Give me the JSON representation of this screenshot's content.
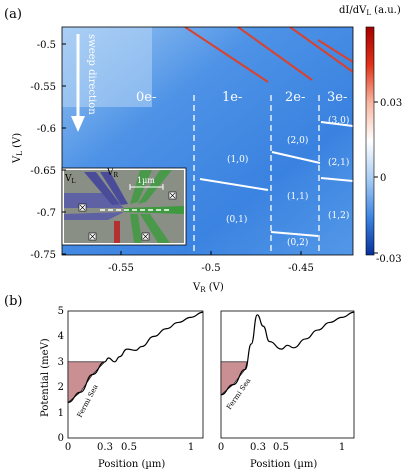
{
  "panel_a": {
    "label": "(a)",
    "colorbar": {
      "title": "dI/dVₗ (a.u.)",
      "title_main": "dI/dV",
      "title_sub": "L",
      "title_unit": " (a.u.)",
      "ticks": [
        "0.03",
        "0",
        "-0.03"
      ],
      "colors": [
        "#a50000",
        "#e0331a",
        "#f7b7a3",
        "#ffffff",
        "#a9cdf3",
        "#3d85e3",
        "#08309c"
      ]
    },
    "ylabel_main": "V",
    "ylabel_sub": "L",
    "ylabel_unit": " (V)",
    "xlabel_main": "V",
    "xlabel_sub": "R",
    "xlabel_unit": " (V)",
    "yticks": [
      "-0.5",
      "-0.55",
      "-0.6",
      "-0.65",
      "-0.7",
      "-0.75"
    ],
    "xticks": [
      "-0.55",
      "-0.5",
      "-0.45"
    ],
    "sweep_text": "sweep direction",
    "regions": [
      "0e-",
      "1e-",
      "2e-",
      "3e-"
    ],
    "states": [
      "(1,0)",
      "(0,1)",
      "(2,0)",
      "(1,1)",
      "(0,2)",
      "(3,0)",
      "(2,1)",
      "(1,2)"
    ],
    "inset": {
      "vl": "V",
      "vl_sub": "L",
      "vr": "V",
      "vr_sub": "R",
      "scale": "1µm"
    }
  },
  "panel_b": {
    "label": "(b)",
    "ylabel": "Potential (meV)",
    "xlabel": "Position (µm)",
    "yticks": [
      "0",
      "1",
      "2",
      "3",
      "4",
      "5"
    ],
    "xticks": [
      "0",
      "0.3",
      "0.5",
      "1"
    ],
    "fermi_label": "Fermi Sea"
  },
  "chart_data": [
    {
      "type": "heatmap",
      "xlabel": "V_R (V)",
      "ylabel": "V_L (V)",
      "xlim": [
        -0.595,
        -0.435
      ],
      "ylim": [
        -0.75,
        -0.48
      ],
      "colorbar_range": [
        -0.03,
        0.03
      ],
      "charge_transitions_vr": [
        -0.523,
        -0.475,
        -0.45
      ]
    },
    {
      "type": "line",
      "xlabel": "Position (µm)",
      "ylabel": "Potential (meV)",
      "xlim": [
        0,
        1.1
      ],
      "ylim": [
        0,
        5
      ],
      "fermi_level": 3.0,
      "x": [
        0,
        0.1,
        0.2,
        0.3,
        0.33,
        0.38,
        0.42,
        0.48,
        0.55,
        0.6,
        0.7,
        0.8,
        0.9,
        1.0,
        1.1
      ],
      "y": [
        1.4,
        1.8,
        2.5,
        3.0,
        3.15,
        3.0,
        3.2,
        3.5,
        3.45,
        3.6,
        4.0,
        4.3,
        4.55,
        4.75,
        4.95
      ]
    },
    {
      "type": "line",
      "xlabel": "Position (µm)",
      "ylabel": "Potential (meV)",
      "xlim": [
        0,
        1.1
      ],
      "ylim": [
        0,
        5
      ],
      "fermi_level": 3.0,
      "x": [
        0,
        0.1,
        0.2,
        0.25,
        0.3,
        0.35,
        0.4,
        0.5,
        0.55,
        0.6,
        0.7,
        0.8,
        0.9,
        1.0,
        1.1
      ],
      "y": [
        1.7,
        2.1,
        2.7,
        3.7,
        4.85,
        4.4,
        3.8,
        3.5,
        3.65,
        3.55,
        3.9,
        4.25,
        4.55,
        4.75,
        4.95
      ]
    }
  ]
}
